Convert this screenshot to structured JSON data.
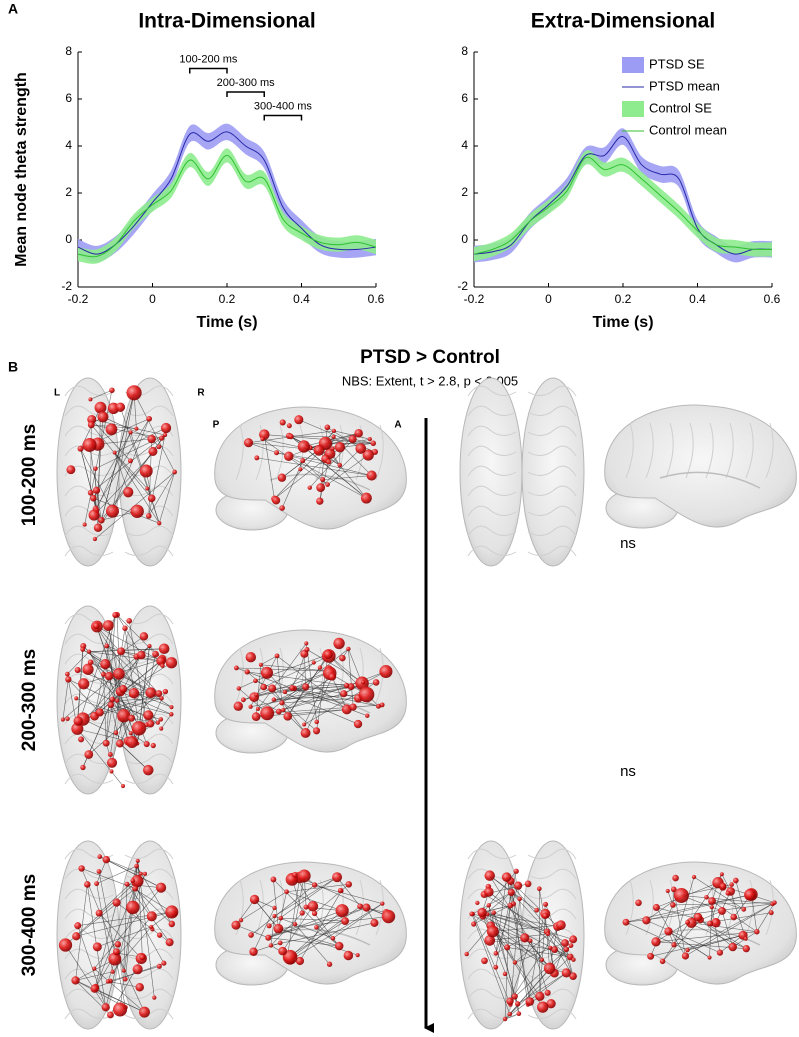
{
  "panel_labels": [
    "A",
    "B"
  ],
  "chart_data": [
    {
      "type": "line",
      "title": "Intra-Dimensional",
      "xlabel": "Time (s)",
      "ylabel": "Mean node theta strength",
      "x": [
        -0.2,
        -0.15,
        -0.1,
        -0.05,
        0,
        0.05,
        0.1,
        0.15,
        0.2,
        0.25,
        0.3,
        0.35,
        0.4,
        0.45,
        0.5,
        0.55,
        0.6
      ],
      "xlim": [
        -0.2,
        0.6
      ],
      "xticks": [
        -0.2,
        0,
        0.2,
        0.4,
        0.6
      ],
      "ylim": [
        -2,
        8
      ],
      "yticks": [
        -2,
        0,
        2,
        4,
        6,
        8
      ],
      "series": [
        {
          "name": "PTSD SE",
          "color": "#9c9cf4",
          "lower": [
            -0.65,
            -0.95,
            -0.55,
            0.25,
            1.25,
            2.25,
            4.15,
            3.85,
            4.25,
            3.65,
            3.05,
            1.05,
            0.15,
            -0.55,
            -0.75,
            -0.75,
            -0.65
          ],
          "upper": [
            0.05,
            -0.25,
            0.15,
            0.95,
            1.95,
            2.95,
            4.85,
            4.55,
            4.95,
            4.35,
            3.75,
            1.75,
            0.85,
            0.15,
            -0.05,
            -0.05,
            0.05
          ]
        },
        {
          "name": "PTSD mean",
          "color": "#2828a8",
          "values": [
            -0.3,
            -0.6,
            -0.2,
            0.6,
            1.6,
            2.6,
            4.5,
            4.2,
            4.6,
            4.0,
            3.4,
            1.4,
            0.5,
            -0.2,
            -0.4,
            -0.4,
            -0.3
          ]
        },
        {
          "name": "Control SE",
          "color": "#8eec8e",
          "lower": [
            -0.9,
            -1.0,
            -0.5,
            0.5,
            1.2,
            1.8,
            3.1,
            2.3,
            3.3,
            2.2,
            2.3,
            0.6,
            0.0,
            -0.4,
            -0.5,
            -0.4,
            -0.6
          ],
          "upper": [
            -0.3,
            -0.4,
            0.1,
            1.1,
            1.8,
            2.4,
            3.7,
            2.9,
            3.9,
            2.8,
            2.9,
            1.2,
            0.6,
            0.2,
            0.1,
            0.2,
            0.0
          ]
        },
        {
          "name": "Control mean",
          "color": "#30c030",
          "values": [
            -0.6,
            -0.7,
            -0.2,
            0.8,
            1.5,
            2.1,
            3.4,
            2.6,
            3.6,
            2.5,
            2.6,
            0.9,
            0.3,
            -0.1,
            -0.2,
            -0.1,
            -0.3
          ]
        }
      ],
      "annotations": [
        {
          "text": "100-200 ms",
          "x": [
            0.1,
            0.2
          ],
          "y": 7.3
        },
        {
          "text": "200-300 ms",
          "x": [
            0.2,
            0.3
          ],
          "y": 6.3
        },
        {
          "text": "300-400 ms",
          "x": [
            0.3,
            0.4
          ],
          "y": 5.3
        }
      ]
    },
    {
      "type": "line",
      "title": "Extra-Dimensional",
      "xlabel": "Time (s)",
      "x": [
        -0.2,
        -0.15,
        -0.1,
        -0.05,
        0,
        0.05,
        0.1,
        0.15,
        0.2,
        0.25,
        0.3,
        0.35,
        0.4,
        0.45,
        0.5,
        0.55,
        0.6
      ],
      "xlim": [
        -0.2,
        0.6
      ],
      "xticks": [
        -0.2,
        0,
        0.2,
        0.4,
        0.6
      ],
      "ylim": [
        -2,
        8
      ],
      "yticks": [
        -2,
        0,
        2,
        4,
        6,
        8
      ],
      "legend": "upper right",
      "series": [
        {
          "name": "PTSD SE",
          "color": "#9c9cf4",
          "lower": [
            -0.95,
            -0.85,
            -0.55,
            0.45,
            1.15,
            1.95,
            3.25,
            3.25,
            4.05,
            2.85,
            2.45,
            2.25,
            0.15,
            -0.55,
            -0.95,
            -0.75,
            -0.75
          ],
          "upper": [
            -0.25,
            -0.15,
            0.15,
            1.15,
            1.85,
            2.65,
            3.95,
            3.95,
            4.75,
            3.55,
            3.15,
            2.95,
            0.85,
            0.15,
            -0.25,
            -0.05,
            -0.05
          ]
        },
        {
          "name": "PTSD mean",
          "color": "#2828a8",
          "values": [
            -0.6,
            -0.5,
            -0.2,
            0.8,
            1.5,
            2.3,
            3.6,
            3.6,
            4.4,
            3.2,
            2.8,
            2.6,
            0.5,
            -0.2,
            -0.6,
            -0.4,
            -0.4
          ]
        },
        {
          "name": "Control SE",
          "color": "#8eec8e",
          "lower": [
            -0.9,
            -0.7,
            -0.3,
            0.5,
            1.1,
            1.8,
            3.2,
            2.7,
            2.9,
            2.3,
            1.6,
            0.9,
            0.1,
            -0.5,
            -0.6,
            -0.7,
            -0.7
          ],
          "upper": [
            -0.3,
            -0.1,
            0.3,
            1.1,
            1.7,
            2.4,
            3.8,
            3.3,
            3.5,
            2.9,
            2.2,
            1.5,
            0.7,
            0.1,
            0.0,
            -0.1,
            -0.1
          ]
        },
        {
          "name": "Control mean",
          "color": "#30c030",
          "values": [
            -0.6,
            -0.4,
            0.0,
            0.8,
            1.4,
            2.1,
            3.5,
            3.0,
            3.2,
            2.6,
            1.9,
            1.2,
            0.4,
            -0.2,
            -0.3,
            -0.4,
            -0.4
          ]
        }
      ]
    }
  ],
  "panel_b": {
    "title": "PTSD > Control",
    "subtitle": "NBS: Extent, t > 2.8, p < 0.005",
    "orientation": [
      "L",
      "R",
      "P",
      "A"
    ],
    "rows": [
      "100-200 ms",
      "200-300 ms",
      "300-400 ms"
    ],
    "ns": [
      "ns",
      "ns"
    ]
  }
}
